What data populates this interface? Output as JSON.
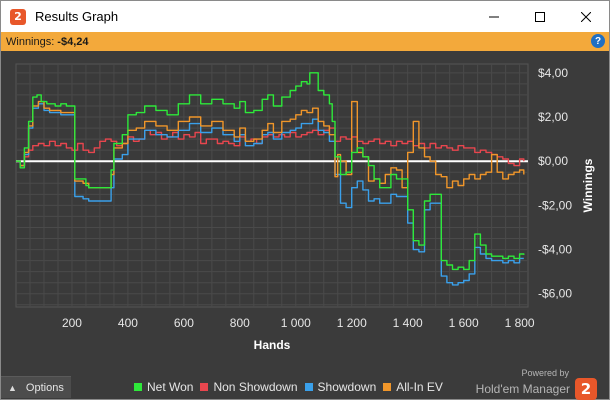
{
  "window": {
    "title": "Results Graph",
    "app_icon_glyph": "2",
    "controls": [
      "minimize-icon",
      "maximize-icon",
      "close-icon"
    ]
  },
  "winnings": {
    "label": "Winnings:",
    "value": "-$4,24",
    "help_glyph": "?"
  },
  "bottom": {
    "options_label": "Options",
    "options_icon": "chevron-up-icon",
    "powered_by": "Powered by",
    "brand_name": "Hold'em Manager",
    "brand_logo_glyph": "2"
  },
  "colors": {
    "net_won": "#2ee83a",
    "non_showdown": "#e8464e",
    "showdown": "#3aa0ea",
    "all_in_ev": "#f0962a",
    "zero_line": "#ffffff",
    "background": "#3b3b3b",
    "grid": "#4a4a4a",
    "winnings_bar": "#f3a93b"
  },
  "chart_data": {
    "type": "line",
    "xlabel": "Hands",
    "ylabel": "Winnings",
    "xlim": [
      0,
      1830
    ],
    "ylim": [
      -6.6,
      4.4
    ],
    "x_ticks": [
      200,
      400,
      600,
      800,
      1000,
      1200,
      1400,
      1600,
      1800
    ],
    "x_tick_labels": [
      "200",
      "400",
      "600",
      "800",
      "1 000",
      "1 200",
      "1 400",
      "1 600",
      "1 800"
    ],
    "y_ticks": [
      4,
      2,
      0,
      -2,
      -4,
      -6
    ],
    "y_tick_labels": [
      "$4,00",
      "$2,00",
      "$0,00",
      "-$2,00",
      "-$4,00",
      "-$6,00"
    ],
    "grid": true,
    "legend_position": "bottom",
    "series": [
      {
        "name": "Net Won",
        "color_key": "net_won",
        "x": [
          0,
          15,
          30,
          45,
          60,
          75,
          90,
          110,
          140,
          160,
          180,
          200,
          210,
          250,
          260,
          300,
          340,
          350,
          380,
          400,
          430,
          460,
          500,
          540,
          580,
          620,
          660,
          700,
          740,
          780,
          800,
          820,
          850,
          880,
          900,
          920,
          950,
          980,
          1000,
          1020,
          1040,
          1050,
          1080,
          1100,
          1120,
          1130,
          1140,
          1160,
          1180,
          1200,
          1220,
          1240,
          1260,
          1280,
          1300,
          1320,
          1340,
          1360,
          1380,
          1400,
          1420,
          1440,
          1460,
          1480,
          1500,
          1520,
          1540,
          1560,
          1580,
          1600,
          1620,
          1640,
          1660,
          1680,
          1700,
          1720,
          1740,
          1760,
          1780,
          1800,
          1815
        ],
        "y": [
          0,
          -0.3,
          0.6,
          1.8,
          2.9,
          3.0,
          2.7,
          2.6,
          2.5,
          2.6,
          2.5,
          2.5,
          -0.8,
          -1.1,
          -1.2,
          -1.2,
          -0.4,
          0.8,
          1.2,
          2.1,
          2.2,
          2.5,
          2.3,
          2.1,
          2.6,
          3.0,
          2.6,
          2.8,
          2.6,
          2.4,
          2.7,
          2.2,
          2.3,
          2.8,
          3.0,
          2.5,
          2.9,
          3.2,
          3.4,
          3.6,
          3.5,
          4.0,
          3.2,
          3.0,
          2.6,
          1.8,
          0.2,
          -0.6,
          -0.5,
          0.4,
          0.6,
          0.2,
          -0.2,
          -0.8,
          -1.2,
          -1.2,
          -0.6,
          -0.8,
          -0.8,
          -2.2,
          -3.6,
          -3.8,
          -1.8,
          -1.5,
          -1.5,
          -4.5,
          -4.7,
          -4.9,
          -4.8,
          -4.9,
          -4.5,
          -3.3,
          -3.8,
          -4.2,
          -4.3,
          -4.3,
          -4.4,
          -4.3,
          -4.4,
          -4.2,
          -4.24
        ]
      },
      {
        "name": "Non Showdown",
        "color_key": "non_showdown",
        "x": [
          0,
          15,
          30,
          45,
          60,
          80,
          100,
          120,
          140,
          160,
          180,
          200,
          220,
          240,
          260,
          280,
          300,
          320,
          340,
          360,
          380,
          400,
          420,
          440,
          460,
          480,
          500,
          520,
          540,
          560,
          580,
          600,
          620,
          640,
          660,
          680,
          700,
          720,
          740,
          760,
          780,
          800,
          820,
          840,
          860,
          880,
          900,
          920,
          940,
          960,
          980,
          1000,
          1020,
          1040,
          1060,
          1080,
          1100,
          1120,
          1140,
          1160,
          1180,
          1200,
          1220,
          1240,
          1260,
          1280,
          1300,
          1320,
          1340,
          1360,
          1380,
          1400,
          1420,
          1440,
          1460,
          1480,
          1500,
          1520,
          1540,
          1560,
          1580,
          1600,
          1620,
          1640,
          1660,
          1680,
          1700,
          1720,
          1740,
          1760,
          1780,
          1800,
          1815
        ],
        "y": [
          0,
          -0.2,
          0.2,
          0.5,
          0.7,
          0.8,
          0.7,
          0.9,
          0.7,
          0.8,
          0.6,
          0.5,
          0.8,
          0.5,
          0.4,
          0.6,
          0.9,
          1.0,
          0.9,
          0.7,
          0.8,
          1.1,
          0.9,
          1.0,
          1.4,
          1.2,
          1.3,
          1.0,
          1.1,
          1.3,
          1.0,
          1.2,
          1.1,
          1.3,
          0.8,
          1.0,
          1.0,
          0.8,
          0.9,
          0.8,
          0.7,
          1.1,
          0.9,
          1.0,
          0.8,
          1.1,
          1.2,
          1.1,
          1.2,
          1.1,
          1.3,
          1.1,
          1.2,
          1.3,
          1.4,
          1.2,
          1.4,
          1.5,
          0.9,
          1.1,
          1.0,
          1.1,
          0.9,
          0.8,
          0.9,
          1.0,
          0.8,
          0.9,
          0.7,
          0.9,
          0.8,
          0.9,
          0.7,
          0.8,
          0.6,
          0.8,
          0.6,
          0.7,
          0.6,
          0.5,
          0.7,
          0.6,
          0.6,
          0.4,
          0.5,
          0.4,
          0.3,
          0.2,
          0.1,
          -0.1,
          -0.2,
          0.1,
          0.0
        ]
      },
      {
        "name": "Showdown",
        "color_key": "showdown",
        "x": [
          0,
          15,
          30,
          45,
          60,
          80,
          100,
          120,
          160,
          200,
          210,
          240,
          260,
          300,
          340,
          350,
          380,
          400,
          430,
          460,
          500,
          540,
          580,
          620,
          660,
          700,
          740,
          780,
          800,
          820,
          850,
          880,
          900,
          920,
          950,
          980,
          1000,
          1020,
          1040,
          1060,
          1080,
          1100,
          1120,
          1140,
          1160,
          1180,
          1200,
          1220,
          1240,
          1260,
          1280,
          1300,
          1320,
          1340,
          1360,
          1380,
          1400,
          1420,
          1440,
          1460,
          1480,
          1500,
          1520,
          1540,
          1560,
          1580,
          1600,
          1620,
          1640,
          1660,
          1680,
          1700,
          1720,
          1740,
          1760,
          1780,
          1800,
          1815
        ],
        "y": [
          0,
          -0.2,
          0.3,
          1.5,
          2.4,
          2.6,
          2.3,
          2.2,
          2.1,
          2.1,
          -1.6,
          -1.7,
          -1.8,
          -1.8,
          -1.2,
          0.1,
          0.3,
          1.0,
          1.0,
          1.4,
          1.2,
          1.1,
          1.4,
          1.7,
          1.3,
          1.5,
          1.2,
          0.9,
          1.2,
          0.7,
          0.8,
          1.2,
          1.3,
          1.0,
          1.3,
          1.4,
          1.5,
          1.7,
          1.7,
          1.9,
          1.4,
          1.3,
          0.9,
          -0.6,
          -1.9,
          -2.1,
          -1.2,
          -0.9,
          -1.3,
          -1.8,
          -1.7,
          -1.9,
          -1.9,
          -1.5,
          -1.6,
          -1.6,
          -2.8,
          -4.0,
          -4.1,
          -2.2,
          -1.9,
          -1.9,
          -5.2,
          -5.5,
          -5.6,
          -5.5,
          -5.4,
          -5.1,
          -3.9,
          -4.2,
          -4.4,
          -4.5,
          -4.5,
          -4.6,
          -4.5,
          -4.6,
          -4.4,
          -4.4
        ]
      },
      {
        "name": "All-In EV",
        "color_key": "all_in_ev",
        "x": [
          0,
          15,
          30,
          45,
          60,
          80,
          100,
          120,
          160,
          200,
          210,
          240,
          260,
          300,
          340,
          350,
          380,
          400,
          430,
          460,
          500,
          540,
          580,
          620,
          660,
          700,
          740,
          780,
          800,
          820,
          850,
          880,
          900,
          920,
          950,
          980,
          1000,
          1020,
          1040,
          1060,
          1080,
          1100,
          1120,
          1140,
          1150,
          1160,
          1180,
          1200,
          1220,
          1240,
          1260,
          1280,
          1300,
          1320,
          1340,
          1360,
          1380,
          1400,
          1420,
          1440,
          1460,
          1480,
          1500,
          1520,
          1540,
          1560,
          1580,
          1600,
          1620,
          1640,
          1660,
          1680,
          1700,
          1720,
          1740,
          1760,
          1780,
          1800,
          1815
        ],
        "y": [
          0,
          -0.2,
          0.4,
          1.6,
          2.5,
          2.7,
          2.4,
          2.3,
          2.2,
          2.2,
          -0.9,
          -1.0,
          -1.2,
          -1.2,
          -0.6,
          0.6,
          0.8,
          1.4,
          1.5,
          1.8,
          1.6,
          1.4,
          1.8,
          2.0,
          1.6,
          1.8,
          1.4,
          1.1,
          1.5,
          0.9,
          1.0,
          1.4,
          1.7,
          1.3,
          1.8,
          1.9,
          2.1,
          2.3,
          2.2,
          2.4,
          1.8,
          1.6,
          1.2,
          -0.7,
          0.3,
          0.0,
          -0.6,
          2.7,
          0.4,
          0.2,
          -0.9,
          -0.8,
          -1.0,
          -0.6,
          -0.3,
          -0.4,
          -1.2,
          0.4,
          1.8,
          0.6,
          0.2,
          0.0,
          -0.6,
          -0.7,
          -1.2,
          -0.9,
          -1.1,
          -0.8,
          -0.6,
          -0.8,
          -0.6,
          -0.5,
          0.3,
          -0.5,
          -0.8,
          -0.6,
          -0.5,
          -0.4,
          -0.6
        ]
      }
    ]
  }
}
